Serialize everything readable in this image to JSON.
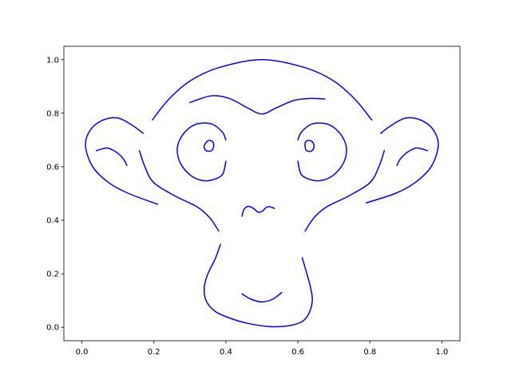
{
  "chart_data": {
    "type": "line",
    "title": "",
    "xlabel": "",
    "ylabel": "",
    "xlim": [
      -0.05,
      1.05
    ],
    "ylim": [
      -0.05,
      1.05
    ],
    "xticks": [
      "0.0",
      "0.2",
      "0.4",
      "0.6",
      "0.8",
      "1.0"
    ],
    "yticks": [
      "0.0",
      "0.2",
      "0.4",
      "0.6",
      "0.8",
      "1.0"
    ],
    "grid": false,
    "legend": "none",
    "line_color": "#0000ff",
    "series": [
      {
        "points": [
          [
            0.196,
            0.775
          ],
          [
            0.24,
            0.85
          ],
          [
            0.3,
            0.92
          ],
          [
            0.38,
            0.97
          ],
          [
            0.5,
            1.0
          ],
          [
            0.62,
            0.97
          ],
          [
            0.7,
            0.92
          ],
          [
            0.76,
            0.85
          ],
          [
            0.805,
            0.775
          ]
        ]
      },
      {
        "points": [
          [
            0.3,
            0.84
          ],
          [
            0.36,
            0.865
          ],
          [
            0.41,
            0.855
          ],
          [
            0.46,
            0.82
          ],
          [
            0.5,
            0.797
          ],
          [
            0.54,
            0.82
          ],
          [
            0.59,
            0.848
          ],
          [
            0.635,
            0.855
          ],
          [
            0.675,
            0.853
          ]
        ]
      },
      {
        "points": [
          [
            0.17,
            0.725
          ],
          [
            0.14,
            0.755
          ],
          [
            0.1,
            0.782
          ],
          [
            0.06,
            0.775
          ],
          [
            0.025,
            0.74
          ],
          [
            0.01,
            0.68
          ],
          [
            0.03,
            0.6
          ],
          [
            0.075,
            0.54
          ],
          [
            0.13,
            0.5
          ],
          [
            0.21,
            0.46
          ]
        ]
      },
      {
        "points": [
          [
            0.04,
            0.66
          ],
          [
            0.07,
            0.67
          ],
          [
            0.095,
            0.655
          ],
          [
            0.115,
            0.63
          ],
          [
            0.125,
            0.605
          ]
        ]
      },
      {
        "points": [
          [
            0.16,
            0.66
          ],
          [
            0.175,
            0.6
          ],
          [
            0.2,
            0.54
          ],
          [
            0.26,
            0.49
          ],
          [
            0.32,
            0.45
          ],
          [
            0.355,
            0.41
          ],
          [
            0.38,
            0.36
          ]
        ]
      },
      {
        "points": [
          [
            0.4,
            0.7
          ],
          [
            0.39,
            0.73
          ],
          [
            0.36,
            0.76
          ],
          [
            0.32,
            0.76
          ],
          [
            0.29,
            0.735
          ],
          [
            0.27,
            0.695
          ],
          [
            0.265,
            0.655
          ],
          [
            0.275,
            0.61
          ],
          [
            0.3,
            0.57
          ],
          [
            0.33,
            0.55
          ],
          [
            0.36,
            0.55
          ],
          [
            0.39,
            0.57
          ],
          [
            0.4,
            0.62
          ]
        ]
      },
      {
        "points": [
          [
            0.345,
            0.69
          ],
          [
            0.34,
            0.68
          ],
          [
            0.34,
            0.67
          ],
          [
            0.345,
            0.66
          ],
          [
            0.355,
            0.658
          ],
          [
            0.362,
            0.662
          ],
          [
            0.366,
            0.675
          ],
          [
            0.365,
            0.69
          ],
          [
            0.358,
            0.698
          ],
          [
            0.35,
            0.697
          ],
          [
            0.345,
            0.69
          ]
        ]
      },
      {
        "points": [
          [
            0.6,
            0.7
          ],
          [
            0.61,
            0.73
          ],
          [
            0.64,
            0.76
          ],
          [
            0.68,
            0.76
          ],
          [
            0.71,
            0.735
          ],
          [
            0.73,
            0.695
          ],
          [
            0.735,
            0.655
          ],
          [
            0.725,
            0.61
          ],
          [
            0.7,
            0.57
          ],
          [
            0.67,
            0.55
          ],
          [
            0.64,
            0.55
          ],
          [
            0.61,
            0.57
          ],
          [
            0.6,
            0.62
          ]
        ]
      },
      {
        "points": [
          [
            0.62,
            0.69
          ],
          [
            0.62,
            0.675
          ],
          [
            0.623,
            0.662
          ],
          [
            0.632,
            0.657
          ],
          [
            0.641,
            0.662
          ],
          [
            0.645,
            0.676
          ],
          [
            0.642,
            0.69
          ],
          [
            0.633,
            0.698
          ],
          [
            0.625,
            0.697
          ],
          [
            0.62,
            0.69
          ]
        ]
      },
      {
        "points": [
          [
            0.83,
            0.725
          ],
          [
            0.86,
            0.755
          ],
          [
            0.9,
            0.782
          ],
          [
            0.94,
            0.775
          ],
          [
            0.975,
            0.74
          ],
          [
            0.99,
            0.68
          ],
          [
            0.97,
            0.6
          ],
          [
            0.925,
            0.54
          ],
          [
            0.87,
            0.5
          ],
          [
            0.79,
            0.465
          ]
        ]
      },
      {
        "points": [
          [
            0.96,
            0.66
          ],
          [
            0.93,
            0.67
          ],
          [
            0.905,
            0.655
          ],
          [
            0.885,
            0.63
          ],
          [
            0.875,
            0.605
          ]
        ]
      },
      {
        "points": [
          [
            0.84,
            0.66
          ],
          [
            0.825,
            0.6
          ],
          [
            0.8,
            0.54
          ],
          [
            0.74,
            0.49
          ],
          [
            0.68,
            0.45
          ],
          [
            0.645,
            0.41
          ],
          [
            0.62,
            0.36
          ]
        ]
      },
      {
        "points": [
          [
            0.445,
            0.415
          ],
          [
            0.45,
            0.44
          ],
          [
            0.462,
            0.452
          ],
          [
            0.476,
            0.445
          ],
          [
            0.49,
            0.43
          ],
          [
            0.502,
            0.435
          ],
          [
            0.512,
            0.448
          ],
          [
            0.523,
            0.45
          ],
          [
            0.535,
            0.444
          ]
        ]
      },
      {
        "points": [
          [
            0.385,
            0.31
          ],
          [
            0.37,
            0.255
          ],
          [
            0.35,
            0.2
          ],
          [
            0.34,
            0.15
          ],
          [
            0.345,
            0.1
          ],
          [
            0.37,
            0.06
          ],
          [
            0.41,
            0.035
          ],
          [
            0.46,
            0.015
          ],
          [
            0.52,
            0.003
          ],
          [
            0.57,
            0.005
          ],
          [
            0.61,
            0.02
          ],
          [
            0.63,
            0.05
          ],
          [
            0.64,
            0.1
          ],
          [
            0.635,
            0.15
          ],
          [
            0.625,
            0.2
          ],
          [
            0.612,
            0.26
          ]
        ]
      },
      {
        "points": [
          [
            0.445,
            0.125
          ],
          [
            0.47,
            0.105
          ],
          [
            0.5,
            0.095
          ],
          [
            0.53,
            0.105
          ],
          [
            0.555,
            0.13
          ]
        ]
      }
    ]
  }
}
